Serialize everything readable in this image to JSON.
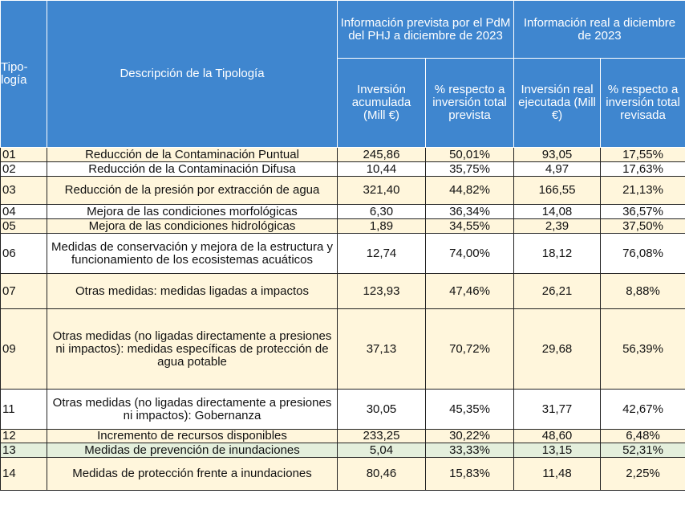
{
  "table": {
    "header": {
      "tipologia": "Tipo-logía",
      "descripcion": "Descripción de la Tipología",
      "group_prevista": "Información prevista por el PdM del PHJ a diciembre de 2023",
      "group_real": "Información real a diciembre de 2023",
      "inv_prevista": "Inversión acumulada (Mill €)",
      "pct_prevista": "% respecto a inversión total prevista",
      "inv_real": "Inversión real ejecutada (Mill €)",
      "pct_real": "% respecto a inversión total revisada"
    },
    "rows": [
      [
        "01",
        "Reducción de la Contaminación Puntual",
        "245,86",
        "50,01%",
        "93,05",
        "17,55%"
      ],
      [
        "02",
        "Reducción de la Contaminación Difusa",
        "10,44",
        "35,75%",
        "4,97",
        "17,63%"
      ],
      [
        "03",
        "Reducción de la presión por extracción de agua",
        "321,40",
        "44,82%",
        "166,55",
        "21,13%"
      ],
      [
        "04",
        "Mejora de las condiciones morfológicas",
        "6,30",
        "36,34%",
        "14,08",
        "36,57%"
      ],
      [
        "05",
        "Mejora de las condiciones hidrológicas",
        "1,89",
        "34,55%",
        "2,39",
        "37,50%"
      ],
      [
        "06",
        "Medidas de conservación y mejora de la estructura y funcionamiento de los ecosistemas acuáticos",
        "12,74",
        "74,00%",
        "18,12",
        "76,08%"
      ],
      [
        "07",
        "Otras medidas: medidas ligadas a impactos",
        "123,93",
        "47,46%",
        "26,21",
        "8,88%"
      ],
      [
        "09",
        "Otras medidas (no ligadas directamente a presiones ni impactos): medidas específicas de protección de agua potable",
        "37,13",
        "70,72%",
        "29,68",
        "56,39%"
      ],
      [
        "11",
        "Otras medidas (no ligadas directamente a presiones ni impactos): Gobernanza",
        "30,05",
        "45,35%",
        "31,77",
        "42,67%"
      ],
      [
        "12",
        "Incremento de recursos disponibles",
        "233,25",
        "30,22%",
        "48,60",
        "6,48%"
      ],
      [
        "13",
        "Medidas de prevención de inundaciones",
        "5,04",
        "33,33%",
        "13,15",
        "52,31%"
      ],
      [
        "14",
        "Medidas de protección frente a inundaciones",
        "80,46",
        "15,83%",
        "11,48",
        "2,25%"
      ]
    ]
  }
}
